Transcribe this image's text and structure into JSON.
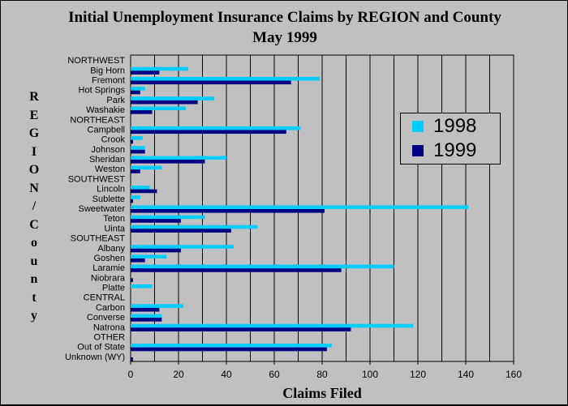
{
  "title_line1": "Initial Unemployment Insurance Claims by REGION and County",
  "title_line2": "May 1999",
  "colors": {
    "s1998": "#00ccff",
    "s1999": "#000080",
    "background": "#c0c0c0",
    "grid": "#000000"
  },
  "chart_data": {
    "type": "bar",
    "orientation": "horizontal",
    "title": "Initial Unemployment Insurance Claims by REGION and County May 1999",
    "xlabel": "Claims Filed",
    "ylabel": "REGION/County",
    "xlim": [
      0,
      160
    ],
    "xticks": [
      0,
      20,
      40,
      60,
      80,
      100,
      120,
      140,
      160
    ],
    "grid": "vertical every 10",
    "legend_position": "right",
    "categories": [
      "NORTHWEST",
      "Big Horn",
      "Fremont",
      "Hot Springs",
      "Park",
      "Washakie",
      "NORTHEAST",
      "Campbell",
      "Crook",
      "Johnson",
      "Sheridan",
      "Weston",
      "SOUTHWEST",
      "Lincoln",
      "Sublette",
      "Sweetwater",
      "Teton",
      "Uinta",
      "SOUTHEAST",
      "Albany",
      "Goshen",
      "Laramie",
      "Niobrara",
      "Platte",
      "CENTRAL",
      "Carbon",
      "Converse",
      "Natrona",
      "OTHER",
      "Out of State",
      "Unknown (WY)"
    ],
    "series": [
      {
        "name": "1998",
        "values": [
          0,
          24,
          79,
          6,
          35,
          23,
          0,
          71,
          5,
          6,
          40,
          13,
          0,
          8,
          4,
          141,
          31,
          53,
          0,
          43,
          15,
          110,
          0,
          9,
          0,
          22,
          13,
          118,
          0,
          84,
          0
        ]
      },
      {
        "name": "1999",
        "values": [
          0,
          12,
          67,
          4,
          28,
          9,
          0,
          65,
          1,
          6,
          31,
          4,
          0,
          11,
          1,
          81,
          21,
          42,
          0,
          21,
          6,
          88,
          1,
          0,
          0,
          12,
          13,
          92,
          0,
          82,
          1
        ]
      }
    ]
  }
}
